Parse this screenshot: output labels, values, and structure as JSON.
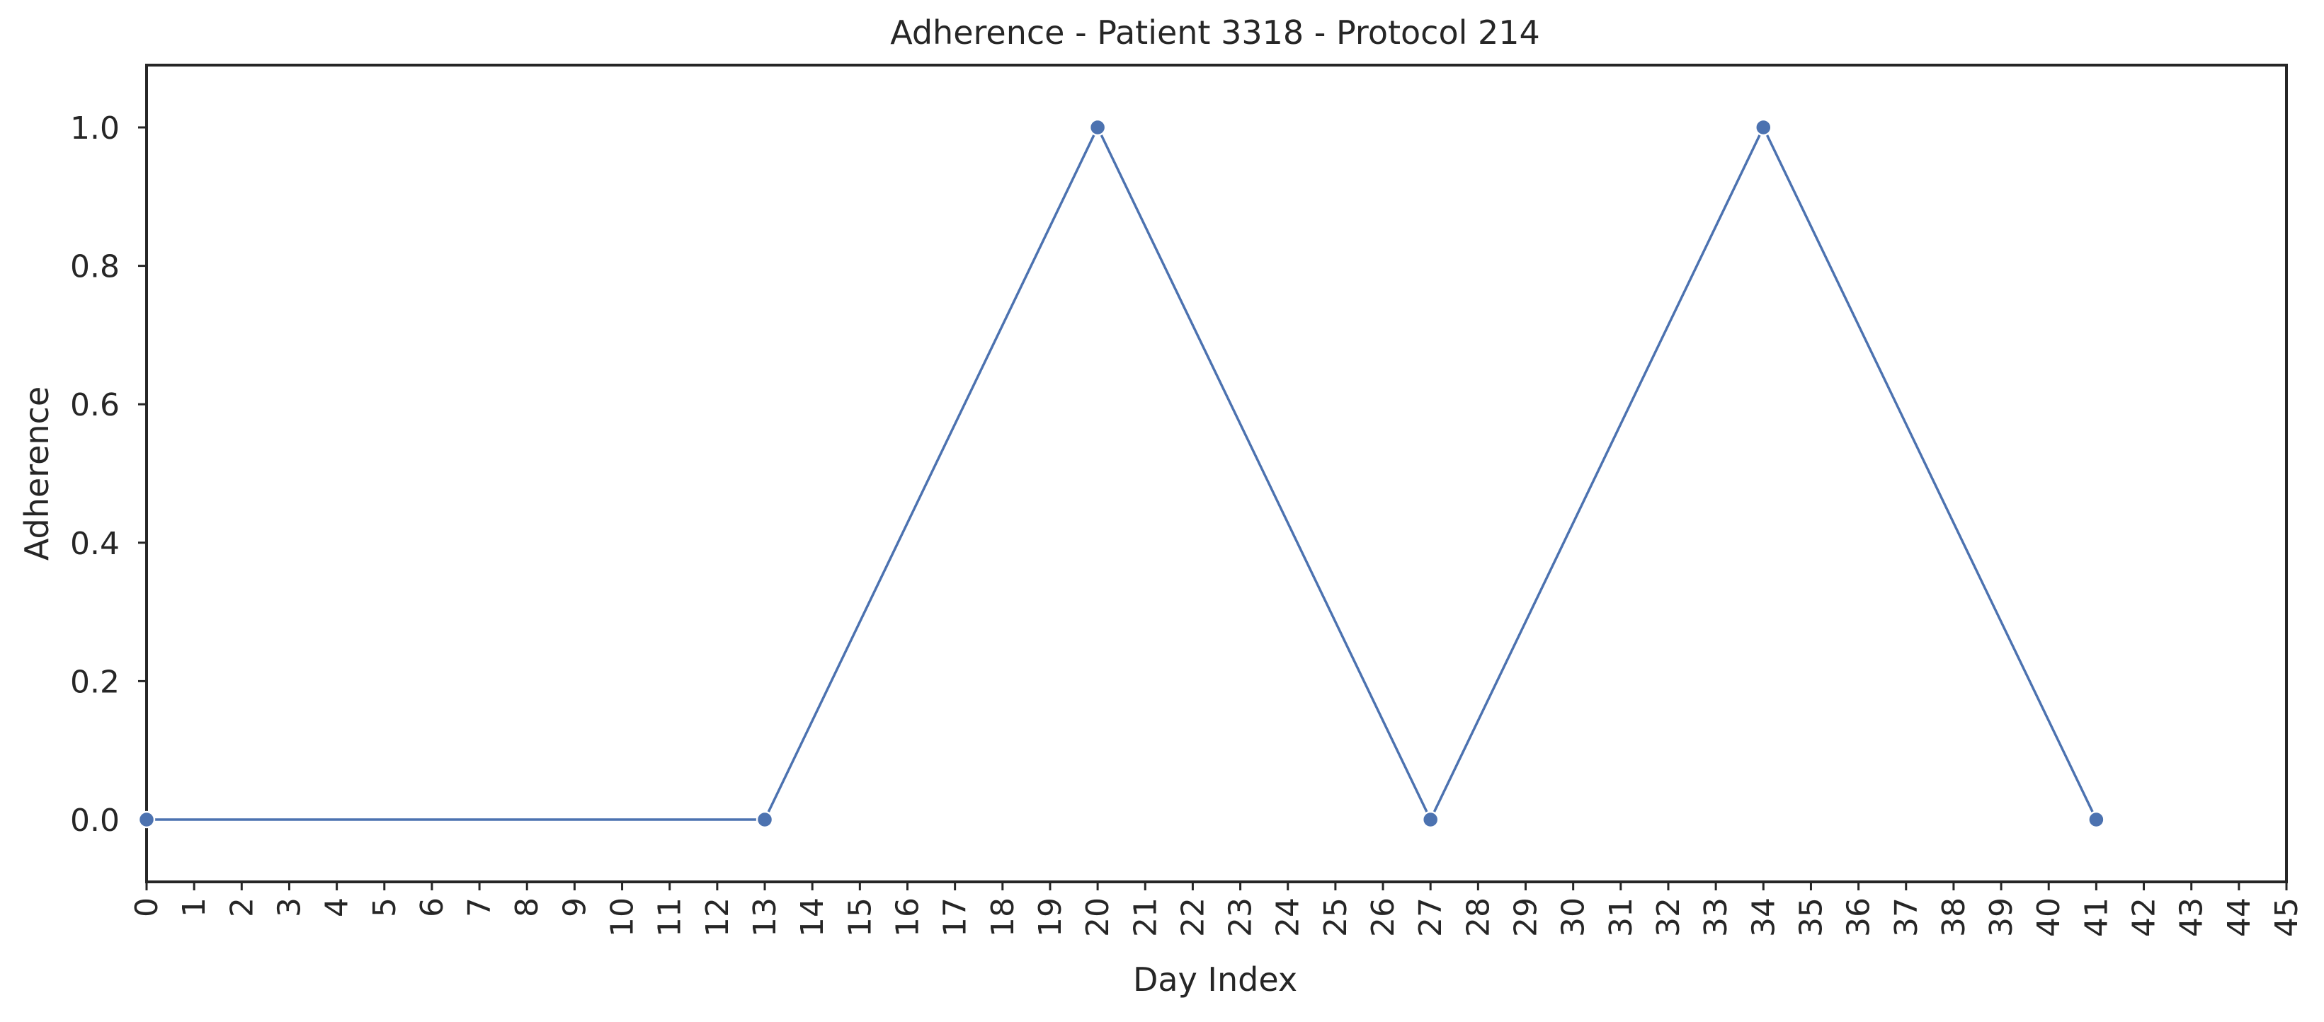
{
  "chart_data": {
    "type": "line",
    "title": "Adherence - Patient 3318 - Protocol 214",
    "xlabel": "Day Index",
    "ylabel": "Adherence",
    "xlim": [
      0,
      45
    ],
    "ylim": [
      -0.09,
      1.09
    ],
    "x_ticks": [
      0,
      1,
      2,
      3,
      4,
      5,
      6,
      7,
      8,
      9,
      10,
      11,
      12,
      13,
      14,
      15,
      16,
      17,
      18,
      19,
      20,
      21,
      22,
      23,
      24,
      25,
      26,
      27,
      28,
      29,
      30,
      31,
      32,
      33,
      34,
      35,
      36,
      37,
      38,
      39,
      40,
      41,
      42,
      43,
      44,
      45
    ],
    "y_ticks": [
      0.0,
      0.2,
      0.4,
      0.6,
      0.8,
      1.0
    ],
    "y_tick_labels": [
      "0.0",
      "0.2",
      "0.4",
      "0.6",
      "0.8",
      "1.0"
    ],
    "grid": false,
    "legend": "none",
    "series": [
      {
        "x": [
          0,
          13,
          20,
          27,
          34,
          41
        ],
        "y": [
          0,
          0,
          1,
          0,
          1,
          0
        ],
        "color": "#4c72b0",
        "marker": "circle"
      }
    ]
  }
}
